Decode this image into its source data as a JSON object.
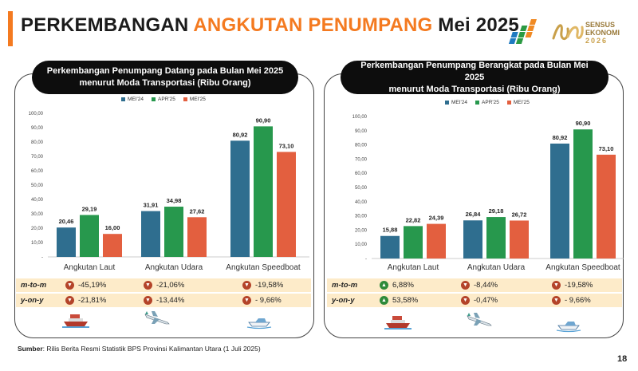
{
  "title": {
    "part1": "PERKEMBANGAN ",
    "part2": "ANGKUTAN PENUMPANG ",
    "part3": "Mei 2025"
  },
  "logo_text": {
    "line1": "SENSUS",
    "line2": "EKONOMI",
    "line3": "2026"
  },
  "colors": {
    "mei24": "#2f6e8f",
    "apr25": "#27984d",
    "mei25": "#e35f3f",
    "accent": "#f47a20",
    "stat_bg": "#fdebc9"
  },
  "legend": [
    "MEI'24",
    "APR'25",
    "MEI'25"
  ],
  "panels": [
    {
      "title_line1": "Perkembangan Penumpang Datang pada Bulan Mei 2025",
      "title_line2": "menurut Moda Transportasi (Ribu Orang)",
      "row_labels": {
        "mtm": "m-to-m",
        "yoy": "y-on-y"
      },
      "mtm": [
        {
          "dir": "down",
          "value": "-45,19%"
        },
        {
          "dir": "down",
          "value": "-21,06%"
        },
        {
          "dir": "down",
          "value": "-19,58%"
        }
      ],
      "yoy": [
        {
          "dir": "down",
          "value": "-21,81%"
        },
        {
          "dir": "down",
          "value": "-13,44%"
        },
        {
          "dir": "down",
          "value": "- 9,66%"
        }
      ]
    },
    {
      "title_line1": "Perkembangan Penumpang Berangkat pada Bulan Mei 2025",
      "title_line2": "menurut Moda Transportasi (Ribu Orang)",
      "row_labels": {
        "mtm": "m-to-m",
        "yoy": "y-on-y"
      },
      "mtm": [
        {
          "dir": "up",
          "value": "6,88%"
        },
        {
          "dir": "down",
          "value": "-8,44%"
        },
        {
          "dir": "down",
          "value": "-19,58%"
        }
      ],
      "yoy": [
        {
          "dir": "up",
          "value": "53,58%"
        },
        {
          "dir": "down",
          "value": "-0,47%"
        },
        {
          "dir": "down",
          "value": "- 9,66%"
        }
      ]
    }
  ],
  "chart_data": [
    {
      "type": "bar",
      "categories": [
        "Angkutan Laut",
        "Angkutan Udara",
        "Angkutan Speedboat"
      ],
      "series": [
        {
          "name": "MEI'24",
          "values": [
            20.46,
            31.91,
            80.92
          ],
          "labels": [
            "20,46",
            "31,91",
            "80,92"
          ]
        },
        {
          "name": "APR'25",
          "values": [
            29.19,
            34.98,
            90.9
          ],
          "labels": [
            "29,19",
            "34,98",
            "90,90"
          ]
        },
        {
          "name": "MEI'25",
          "values": [
            16.0,
            27.62,
            73.1
          ],
          "labels": [
            "16,00",
            "27,62",
            "73,10"
          ]
        }
      ],
      "ylim": [
        0,
        100
      ],
      "yticks": [
        "-",
        "10,00",
        "20,00",
        "30,00",
        "40,00",
        "50,00",
        "60,00",
        "70,00",
        "80,00",
        "90,00",
        "100,00"
      ],
      "legend": "top"
    },
    {
      "type": "bar",
      "categories": [
        "Angkutan Laut",
        "Angkutan Udara",
        "Angkutan Speedboat"
      ],
      "series": [
        {
          "name": "MEI'24",
          "values": [
            15.88,
            26.84,
            80.92
          ],
          "labels": [
            "15,88",
            "26,84",
            "80,92"
          ]
        },
        {
          "name": "APR'25",
          "values": [
            22.82,
            29.18,
            90.9
          ],
          "labels": [
            "22,82",
            "29,18",
            "90,90"
          ]
        },
        {
          "name": "MEI'25",
          "values": [
            24.39,
            26.72,
            73.1
          ],
          "labels": [
            "24,39",
            "26,72",
            "73,10"
          ]
        }
      ],
      "ylim": [
        0,
        100
      ],
      "yticks": [
        "-",
        "10,00",
        "20,00",
        "30,00",
        "40,00",
        "50,00",
        "60,00",
        "70,00",
        "80,00",
        "90,00",
        "100,00"
      ],
      "legend": "top"
    }
  ],
  "source": {
    "label": "Sumber",
    "text": ": Rilis Berita Resmi Statistik BPS Provinsi Kalimantan Utara (1 Juli 2025)"
  },
  "page_number": "18"
}
